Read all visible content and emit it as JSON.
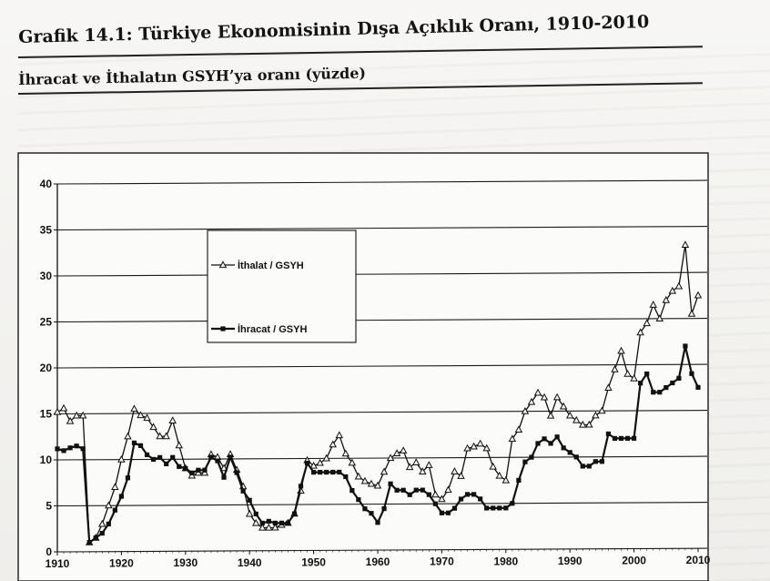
{
  "title": "Grafik 14.1: Türkiye Ekonomisinin Dışa Açıklık Oranı, 1910-2010",
  "subtitle": "İhracat ve İthalatın GSYH’ya oranı (yüzde)",
  "colors": {
    "ink": "#111111",
    "grid": "#1a1a1a",
    "paper": "#f4f3f1"
  },
  "chart_data": {
    "type": "line",
    "title": "",
    "xlabel": "",
    "ylabel": "",
    "xlim": [
      1910,
      2010
    ],
    "ylim": [
      0,
      40
    ],
    "grid": "horizontal",
    "legend_position": "upper-left-center",
    "x_ticks": [
      "1910",
      "1920",
      "1930",
      "1940",
      "1950",
      "1960",
      "1970",
      "1980",
      "1990",
      "2000",
      "2010"
    ],
    "y_ticks": [
      "0",
      "5",
      "10",
      "15",
      "20",
      "25",
      "30",
      "35",
      "40"
    ],
    "x": [
      1910,
      1911,
      1912,
      1913,
      1914,
      1915,
      1916,
      1917,
      1918,
      1919,
      1920,
      1921,
      1922,
      1923,
      1924,
      1925,
      1926,
      1927,
      1928,
      1929,
      1930,
      1931,
      1932,
      1933,
      1934,
      1935,
      1936,
      1937,
      1938,
      1939,
      1940,
      1941,
      1942,
      1943,
      1944,
      1945,
      1946,
      1947,
      1948,
      1949,
      1950,
      1951,
      1952,
      1953,
      1954,
      1955,
      1956,
      1957,
      1958,
      1959,
      1960,
      1961,
      1962,
      1963,
      1964,
      1965,
      1966,
      1967,
      1968,
      1969,
      1970,
      1971,
      1972,
      1973,
      1974,
      1975,
      1976,
      1977,
      1978,
      1979,
      1980,
      1981,
      1982,
      1983,
      1984,
      1985,
      1986,
      1987,
      1988,
      1989,
      1990,
      1991,
      1992,
      1993,
      1994,
      1995,
      1996,
      1997,
      1998,
      1999,
      2000,
      2001,
      2002,
      2003,
      2004,
      2005,
      2006,
      2007,
      2008,
      2009,
      2010
    ],
    "series": [
      {
        "name": "İthalat / GSYH",
        "marker": "triangle",
        "values": [
          15.2,
          15.6,
          14.2,
          14.8,
          14.8,
          1,
          1.5,
          3,
          5,
          7,
          10,
          12.5,
          15.5,
          14.8,
          14.5,
          13.5,
          12.5,
          12.5,
          14.2,
          11.5,
          9,
          8.2,
          8.5,
          8.5,
          10.5,
          10.2,
          9,
          10.5,
          8.8,
          7,
          4,
          3,
          2.5,
          2.5,
          2.5,
          2.8,
          3,
          4,
          6.5,
          9.8,
          9.2,
          9.5,
          10,
          11.5,
          12.5,
          10.5,
          9.5,
          8,
          7.5,
          7.2,
          7,
          8.5,
          10,
          10.5,
          10.8,
          9,
          9.5,
          8.5,
          9.2,
          6,
          5.5,
          6.5,
          8.5,
          8,
          11,
          11.2,
          11.5,
          11,
          9,
          8,
          7.5,
          12,
          13,
          15,
          16,
          17,
          16.5,
          14.5,
          16.5,
          15.5,
          14.5,
          14,
          13.5,
          13.5,
          14.5,
          15,
          17.5,
          19.5,
          21.5,
          19,
          18.5,
          23.5,
          24.5,
          26.5,
          25,
          27,
          28,
          28.5,
          33,
          25.5,
          27.5
        ]
      },
      {
        "name": "İhracat / GSYH",
        "marker": "square",
        "values": [
          11.2,
          11,
          11.3,
          11.5,
          11.2,
          1,
          1.5,
          2,
          3,
          4.5,
          6,
          8,
          11.8,
          11.5,
          10.5,
          10,
          10.2,
          9.5,
          10.2,
          9.2,
          9,
          8.5,
          8.8,
          8.8,
          10.2,
          9.8,
          8,
          10.2,
          8.5,
          6.5,
          5.5,
          4,
          3,
          3.2,
          3,
          3,
          3,
          4,
          7,
          9.5,
          8.5,
          8.5,
          8.5,
          8.5,
          8.5,
          8,
          6.5,
          5.5,
          4.5,
          4,
          3,
          4.5,
          7.2,
          6.5,
          6.5,
          6,
          6.5,
          6.5,
          6,
          5,
          4,
          4,
          4.5,
          5.5,
          6,
          6,
          5.5,
          4.5,
          4.5,
          4.5,
          4.5,
          5,
          7.5,
          9.5,
          10,
          11.5,
          12,
          11.5,
          12.2,
          11,
          10.5,
          10,
          9,
          9,
          9.5,
          9.5,
          12.5,
          12,
          12,
          12,
          12,
          18,
          19,
          17,
          17,
          17.5,
          18,
          18.5,
          22,
          19,
          17.5
        ]
      }
    ]
  }
}
